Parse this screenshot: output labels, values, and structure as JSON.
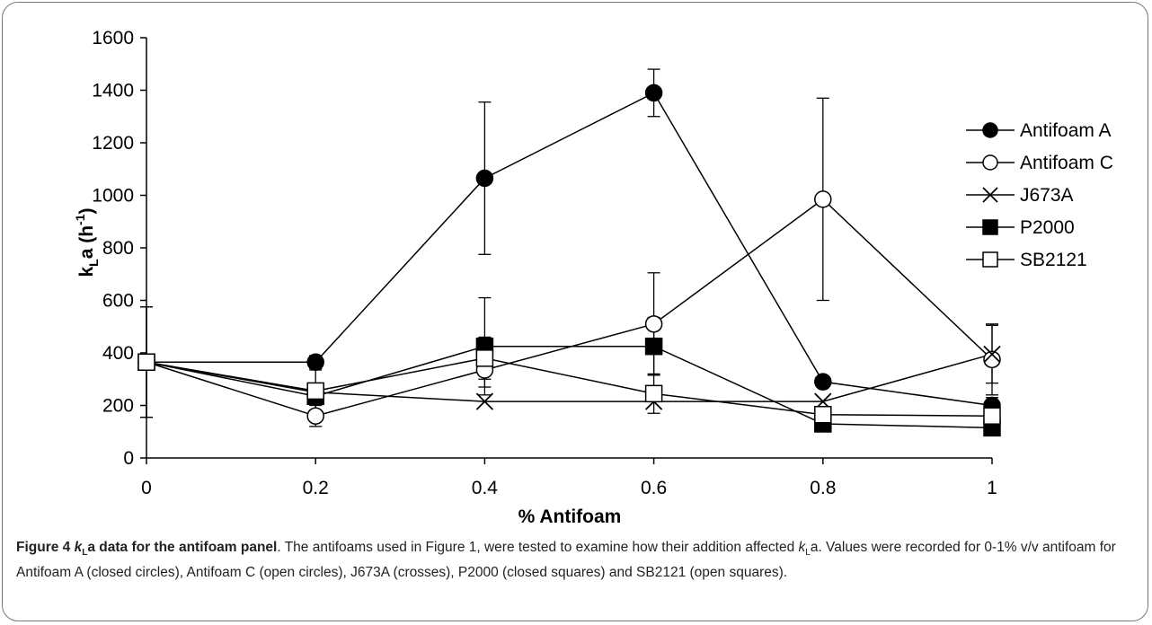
{
  "chart_data": {
    "type": "line",
    "ylabel_main": "k",
    "ylabel_sub": "L",
    "ylabel_rest": "a (h",
    "ylabel_sup": "-1",
    "ylabel_close": ")",
    "xlabel": "% Antifoam",
    "x": [
      0,
      0.2,
      0.4,
      0.6,
      0.8,
      1
    ],
    "x_tick_labels": [
      "0",
      "0.2",
      "0.4",
      "0.6",
      "0.8",
      "1"
    ],
    "ylim": [
      0,
      1600
    ],
    "y_ticks": [
      0,
      200,
      400,
      600,
      800,
      1000,
      1200,
      1400,
      1600
    ],
    "grid": false,
    "legend_position": "right",
    "series": [
      {
        "name": "Antifoam A",
        "marker": "filled-circle",
        "values": [
          365,
          365,
          1065,
          1390,
          290,
          200
        ],
        "error": [
          210,
          25,
          290,
          90,
          20,
          30
        ]
      },
      {
        "name": "Antifoam C",
        "marker": "open-circle",
        "values": [
          365,
          160,
          335,
          510,
          985,
          375
        ],
        "error": [
          210,
          40,
          65,
          195,
          385,
          135
        ]
      },
      {
        "name": "J673A",
        "marker": "cross",
        "values": [
          365,
          250,
          215,
          215,
          215,
          395
        ],
        "error": [
          0,
          0,
          0,
          0,
          0,
          110
        ]
      },
      {
        "name": "P2000",
        "marker": "filled-square",
        "values": [
          365,
          235,
          425,
          425,
          130,
          115
        ],
        "error": [
          0,
          0,
          185,
          110,
          0,
          0
        ]
      },
      {
        "name": "SB2121",
        "marker": "open-square",
        "values": [
          365,
          255,
          380,
          245,
          165,
          160
        ],
        "error": [
          0,
          80,
          80,
          75,
          0,
          0
        ]
      }
    ]
  },
  "caption": {
    "label": "Figure 4",
    "title_k": "k",
    "title_sub": "L",
    "title_rest": "a data for the antifoam panel",
    "body_1": ". The antifoams used in Figure 1, were tested to examine how their addition affected ",
    "body_k": "k",
    "body_sub": "L",
    "body_2": "a. Values were recorded for 0-1% v/v antifoam for Antifoam A (closed circles), Antifoam C (open circles), J673A (crosses), P2000 (closed squares) and SB2121 (open squares)."
  }
}
